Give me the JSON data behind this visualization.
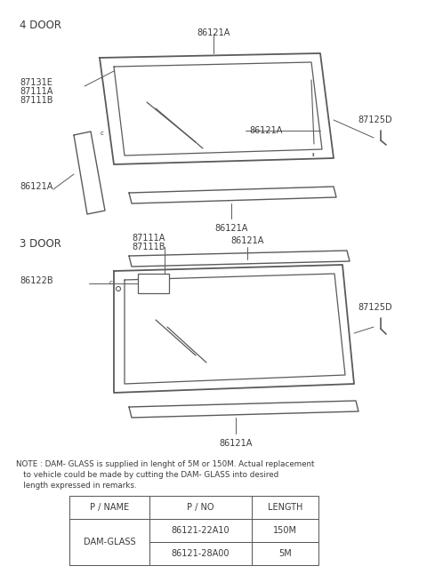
{
  "background_color": "#ffffff",
  "text_color": "#3a3a3a",
  "line_color": "#5a5a5a",
  "title_4door": "4 DOOR",
  "title_3door": "3 DOOR",
  "note_line1": "NOTE : DAM- GLASS is supplied in lenght of 5M or 150M. Actual replacement",
  "note_line2": "   to vehicle could be made by cutting the DAM- GLASS into desired",
  "note_line3": "   length expressed in remarks.",
  "table_headers": [
    "P / NAME",
    "P / NO",
    "LENGTH"
  ],
  "table_row1_name": "DAM-GLASS",
  "table_row1_pno": "86121-22A10",
  "table_row1_len": "150M",
  "table_row2_pno": "86121-28A00",
  "table_row2_len": "5M",
  "lbl_4d_top": "86121A",
  "lbl_4d_left1": "87131E",
  "lbl_4d_left2": "87111A",
  "lbl_4d_left3": "87111B",
  "lbl_4d_leftstrip": "86121A",
  "lbl_4d_center": "86121A",
  "lbl_4d_bottom": "86121A",
  "lbl_4d_right": "87125D",
  "lbl_3d_tl1": "87111A",
  "lbl_3d_tl2": "87111B",
  "lbl_3d_top": "86121A",
  "lbl_3d_left": "86122B",
  "lbl_3d_right": "87125D",
  "lbl_3d_bottom": "86121A"
}
